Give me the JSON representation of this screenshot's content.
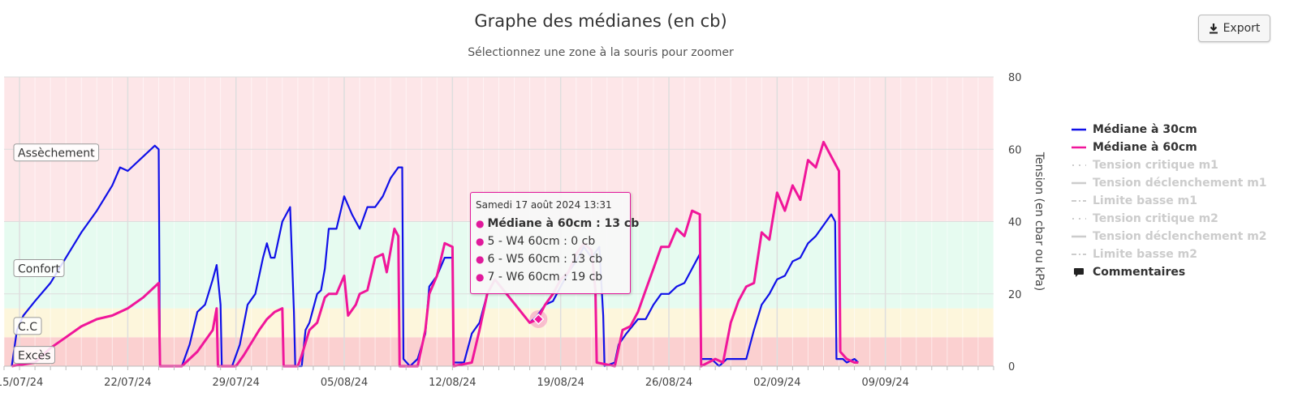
{
  "title": "Graphe des médianes (en cb)",
  "subtitle": "Sélectionnez une zone à la souris pour zoomer",
  "export_label": "Export",
  "tooltip": {
    "date": "Samedi 17 août 2024 13:31",
    "rows": [
      {
        "text": "Médiane à 60cm : 13 cb",
        "bold": true
      },
      {
        "text": "5 - W4 60cm : 0 cb",
        "bold": false
      },
      {
        "text": "6 - W5 60cm : 13 cb",
        "bold": false
      },
      {
        "text": "7 - W6 60cm : 19 cb",
        "bold": false
      }
    ]
  },
  "legend": [
    {
      "label": "Médiane à 30cm",
      "color": "#1010e8",
      "symbol": "line",
      "hidden": false
    },
    {
      "label": "Médiane à 60cm",
      "color": "#f0169a",
      "symbol": "line",
      "hidden": false
    },
    {
      "label": "Tension critique m1",
      "color": "#cccccc",
      "symbol": "dot",
      "hidden": true
    },
    {
      "label": "Tension déclenchement m1",
      "color": "#cccccc",
      "symbol": "line",
      "hidden": true
    },
    {
      "label": "Limite basse m1",
      "color": "#cccccc",
      "symbol": "dashdot",
      "hidden": true
    },
    {
      "label": "Tension critique m2",
      "color": "#cccccc",
      "symbol": "dot",
      "hidden": true
    },
    {
      "label": "Tension déclenchement m2",
      "color": "#cccccc",
      "symbol": "line",
      "hidden": true
    },
    {
      "label": "Limite basse m2",
      "color": "#cccccc",
      "symbol": "dashdot",
      "hidden": true
    },
    {
      "label": "Commentaires",
      "color": "#222222",
      "symbol": "comment",
      "hidden": false
    }
  ],
  "chart_data": {
    "type": "line",
    "title": "Graphe des médianes (en cb)",
    "ylabel": "Tension (en cbar ou kPa)",
    "ylim": [
      0,
      80
    ],
    "yticks": [
      0,
      20,
      40,
      60,
      80
    ],
    "xlim": [
      "2024-07-14",
      "2024-09-16"
    ],
    "xticks": [
      {
        "date": "2024-07-15",
        "label": "15/07/24"
      },
      {
        "date": "2024-07-22",
        "label": "22/07/24"
      },
      {
        "date": "2024-07-29",
        "label": "29/07/24"
      },
      {
        "date": "2024-08-05",
        "label": "05/08/24"
      },
      {
        "date": "2024-08-12",
        "label": "12/08/24"
      },
      {
        "date": "2024-08-19",
        "label": "19/08/24"
      },
      {
        "date": "2024-08-26",
        "label": "26/08/24"
      },
      {
        "date": "2024-09-02",
        "label": "02/09/24"
      },
      {
        "date": "2024-09-09",
        "label": "09/09/24"
      }
    ],
    "bands": [
      {
        "label": "Excès",
        "from": 0,
        "to": 8,
        "color": "#fbd0d0"
      },
      {
        "label": "C.C",
        "from": 8,
        "to": 16,
        "color": "#fdf6dc"
      },
      {
        "label": "Confort",
        "from": 16,
        "to": 40,
        "color": "#e6fbf0"
      },
      {
        "label": "Assèchement",
        "from": 40,
        "to": 80,
        "color": "#fde6e8"
      }
    ],
    "band_label_values": [
      {
        "label": "Assèchement",
        "y": 59
      },
      {
        "label": "Confort",
        "y": 27
      },
      {
        "label": "C.C",
        "y": 11
      },
      {
        "label": "Excès",
        "y": 3
      }
    ],
    "series": [
      {
        "name": "Médiane à 30cm",
        "color": "#1010e8",
        "points": [
          [
            "2024-07-14T12:00",
            0
          ],
          [
            "2024-07-14T20:00",
            10
          ],
          [
            "2024-07-15T06:00",
            14
          ],
          [
            "2024-07-16T00:00",
            18
          ],
          [
            "2024-07-17T00:00",
            23
          ],
          [
            "2024-07-18T00:00",
            30
          ],
          [
            "2024-07-19T00:00",
            37
          ],
          [
            "2024-07-20T00:00",
            43
          ],
          [
            "2024-07-21T00:00",
            50
          ],
          [
            "2024-07-21T12:00",
            55
          ],
          [
            "2024-07-22T00:00",
            54
          ],
          [
            "2024-07-23T00:00",
            58
          ],
          [
            "2024-07-23T18:00",
            61
          ],
          [
            "2024-07-24T00:00",
            60
          ],
          [
            "2024-07-24T02:00",
            0
          ],
          [
            "2024-07-25T12:00",
            0
          ],
          [
            "2024-07-26T00:00",
            6
          ],
          [
            "2024-07-26T12:00",
            15
          ],
          [
            "2024-07-27T00:00",
            17
          ],
          [
            "2024-07-27T12:00",
            24
          ],
          [
            "2024-07-27T18:00",
            28
          ],
          [
            "2024-07-28T00:00",
            17
          ],
          [
            "2024-07-28T02:00",
            0
          ],
          [
            "2024-07-28T18:00",
            0
          ],
          [
            "2024-07-29T06:00",
            6
          ],
          [
            "2024-07-29T18:00",
            17
          ],
          [
            "2024-07-30T06:00",
            20
          ],
          [
            "2024-07-30T18:00",
            30
          ],
          [
            "2024-07-31T00:00",
            34
          ],
          [
            "2024-07-31T06:00",
            30
          ],
          [
            "2024-07-31T12:00",
            30
          ],
          [
            "2024-08-01T00:00",
            40
          ],
          [
            "2024-08-01T12:00",
            44
          ],
          [
            "2024-08-01T18:00",
            15
          ],
          [
            "2024-08-01T20:00",
            0
          ],
          [
            "2024-08-02T06:00",
            0
          ],
          [
            "2024-08-02T12:00",
            10
          ],
          [
            "2024-08-02T18:00",
            12
          ],
          [
            "2024-08-03T06:00",
            20
          ],
          [
            "2024-08-03T12:00",
            21
          ],
          [
            "2024-08-03T18:00",
            27
          ],
          [
            "2024-08-04T00:00",
            38
          ],
          [
            "2024-08-04T12:00",
            38
          ],
          [
            "2024-08-05T00:00",
            47
          ],
          [
            "2024-08-05T12:00",
            42
          ],
          [
            "2024-08-06T00:00",
            38
          ],
          [
            "2024-08-06T12:00",
            44
          ],
          [
            "2024-08-07T00:00",
            44
          ],
          [
            "2024-08-07T12:00",
            47
          ],
          [
            "2024-08-08T00:00",
            52
          ],
          [
            "2024-08-08T12:00",
            55
          ],
          [
            "2024-08-08T18:00",
            55
          ],
          [
            "2024-08-08T20:00",
            2
          ],
          [
            "2024-08-09T06:00",
            0
          ],
          [
            "2024-08-09T18:00",
            2
          ],
          [
            "2024-08-10T06:00",
            9
          ],
          [
            "2024-08-10T12:00",
            22
          ],
          [
            "2024-08-11T00:00",
            25
          ],
          [
            "2024-08-11T12:00",
            30
          ],
          [
            "2024-08-12T00:00",
            30
          ],
          [
            "2024-08-12T02:00",
            1
          ],
          [
            "2024-08-12T18:00",
            1
          ],
          [
            "2024-08-13T06:00",
            9
          ],
          [
            "2024-08-13T18:00",
            12
          ],
          [
            "2024-08-14T06:00",
            20
          ],
          [
            "2024-08-14T18:00",
            24
          ],
          [
            "2024-08-17T00:00",
            12
          ],
          [
            "2024-08-17T12:00",
            14
          ],
          [
            "2024-08-18T00:00",
            17
          ],
          [
            "2024-08-18T12:00",
            18
          ],
          [
            "2024-08-19T00:00",
            22
          ],
          [
            "2024-08-19T12:00",
            26
          ],
          [
            "2024-08-20T00:00",
            29
          ],
          [
            "2024-08-20T12:00",
            33
          ],
          [
            "2024-08-21T00:00",
            30
          ],
          [
            "2024-08-21T12:00",
            33
          ],
          [
            "2024-08-21T18:00",
            14
          ],
          [
            "2024-08-21T20:00",
            0
          ],
          [
            "2024-08-22T12:00",
            1
          ],
          [
            "2024-08-22T18:00",
            6
          ],
          [
            "2024-08-23T06:00",
            9
          ],
          [
            "2024-08-24T00:00",
            13
          ],
          [
            "2024-08-24T12:00",
            13
          ],
          [
            "2024-08-25T00:00",
            17
          ],
          [
            "2024-08-25T12:00",
            20
          ],
          [
            "2024-08-26T00:00",
            20
          ],
          [
            "2024-08-26T12:00",
            22
          ],
          [
            "2024-08-27T00:00",
            23
          ],
          [
            "2024-08-27T12:00",
            27
          ],
          [
            "2024-08-28T00:00",
            31
          ],
          [
            "2024-08-28T02:00",
            2
          ],
          [
            "2024-08-28T18:00",
            2
          ],
          [
            "2024-08-29T06:00",
            0
          ],
          [
            "2024-08-29T18:00",
            2
          ],
          [
            "2024-08-31T00:00",
            2
          ],
          [
            "2024-08-31T12:00",
            10
          ],
          [
            "2024-09-01T00:00",
            17
          ],
          [
            "2024-09-01T12:00",
            20
          ],
          [
            "2024-09-02T00:00",
            24
          ],
          [
            "2024-09-02T12:00",
            25
          ],
          [
            "2024-09-03T00:00",
            29
          ],
          [
            "2024-09-03T12:00",
            30
          ],
          [
            "2024-09-04T00:00",
            34
          ],
          [
            "2024-09-04T12:00",
            36
          ],
          [
            "2024-09-05T00:00",
            39
          ],
          [
            "2024-09-05T12:00",
            42
          ],
          [
            "2024-09-05T18:00",
            40
          ],
          [
            "2024-09-05T20:00",
            2
          ],
          [
            "2024-09-06T06:00",
            2
          ],
          [
            "2024-09-06T12:00",
            1
          ],
          [
            "2024-09-07T00:00",
            2
          ],
          [
            "2024-09-07T06:00",
            1
          ]
        ]
      },
      {
        "name": "Médiane à 60cm",
        "color": "#f0169a",
        "points": [
          [
            "2024-07-14T12:00",
            0
          ],
          [
            "2024-07-16T00:00",
            1
          ],
          [
            "2024-07-17T00:00",
            5
          ],
          [
            "2024-07-18T00:00",
            8
          ],
          [
            "2024-07-19T00:00",
            11
          ],
          [
            "2024-07-20T00:00",
            13
          ],
          [
            "2024-07-21T00:00",
            14
          ],
          [
            "2024-07-22T00:00",
            16
          ],
          [
            "2024-07-23T00:00",
            19
          ],
          [
            "2024-07-24T00:00",
            23
          ],
          [
            "2024-07-24T02:00",
            0
          ],
          [
            "2024-07-25T12:00",
            0
          ],
          [
            "2024-07-26T12:00",
            4
          ],
          [
            "2024-07-27T12:00",
            10
          ],
          [
            "2024-07-27T18:00",
            16
          ],
          [
            "2024-07-27T20:00",
            0
          ],
          [
            "2024-07-29T00:00",
            0
          ],
          [
            "2024-07-29T12:00",
            3
          ],
          [
            "2024-07-30T12:00",
            10
          ],
          [
            "2024-07-31T00:00",
            13
          ],
          [
            "2024-07-31T12:00",
            15
          ],
          [
            "2024-08-01T00:00",
            16
          ],
          [
            "2024-08-01T02:00",
            0
          ],
          [
            "2024-08-02T00:00",
            0
          ],
          [
            "2024-08-02T06:00",
            3
          ],
          [
            "2024-08-02T18:00",
            10
          ],
          [
            "2024-08-03T06:00",
            12
          ],
          [
            "2024-08-03T18:00",
            19
          ],
          [
            "2024-08-04T00:00",
            20
          ],
          [
            "2024-08-04T12:00",
            20
          ],
          [
            "2024-08-05T00:00",
            25
          ],
          [
            "2024-08-05T06:00",
            14
          ],
          [
            "2024-08-05T18:00",
            17
          ],
          [
            "2024-08-06T00:00",
            20
          ],
          [
            "2024-08-06T12:00",
            21
          ],
          [
            "2024-08-07T00:00",
            30
          ],
          [
            "2024-08-07T12:00",
            31
          ],
          [
            "2024-08-07T18:00",
            26
          ],
          [
            "2024-08-08T06:00",
            38
          ],
          [
            "2024-08-08T12:00",
            36
          ],
          [
            "2024-08-08T14:00",
            0
          ],
          [
            "2024-08-09T18:00",
            0
          ],
          [
            "2024-08-10T06:00",
            10
          ],
          [
            "2024-08-10T12:00",
            20
          ],
          [
            "2024-08-11T00:00",
            25
          ],
          [
            "2024-08-11T12:00",
            34
          ],
          [
            "2024-08-12T00:00",
            33
          ],
          [
            "2024-08-12T02:00",
            0
          ],
          [
            "2024-08-13T06:00",
            1
          ],
          [
            "2024-08-13T18:00",
            10
          ],
          [
            "2024-08-14T06:00",
            20
          ],
          [
            "2024-08-14T18:00",
            24
          ],
          [
            "2024-08-17T00:00",
            12
          ],
          [
            "2024-08-17T12:00",
            13
          ],
          [
            "2024-08-18T00:00",
            17
          ],
          [
            "2024-08-18T12:00",
            20
          ],
          [
            "2024-08-19T00:00",
            24
          ],
          [
            "2024-08-19T12:00",
            26
          ],
          [
            "2024-08-20T00:00",
            31
          ],
          [
            "2024-08-20T12:00",
            34
          ],
          [
            "2024-08-21T00:00",
            32
          ],
          [
            "2024-08-21T06:00",
            21
          ],
          [
            "2024-08-21T08:00",
            1
          ],
          [
            "2024-08-22T12:00",
            0
          ],
          [
            "2024-08-23T00:00",
            10
          ],
          [
            "2024-08-23T12:00",
            11
          ],
          [
            "2024-08-24T00:00",
            15
          ],
          [
            "2024-08-24T12:00",
            21
          ],
          [
            "2024-08-25T00:00",
            27
          ],
          [
            "2024-08-25T12:00",
            33
          ],
          [
            "2024-08-26T00:00",
            33
          ],
          [
            "2024-08-26T12:00",
            38
          ],
          [
            "2024-08-27T00:00",
            36
          ],
          [
            "2024-08-27T12:00",
            43
          ],
          [
            "2024-08-28T00:00",
            42
          ],
          [
            "2024-08-28T02:00",
            0
          ],
          [
            "2024-08-29T00:00",
            2
          ],
          [
            "2024-08-29T12:00",
            1
          ],
          [
            "2024-08-30T00:00",
            12
          ],
          [
            "2024-08-30T12:00",
            18
          ],
          [
            "2024-08-31T00:00",
            22
          ],
          [
            "2024-08-31T12:00",
            23
          ],
          [
            "2024-09-01T00:00",
            37
          ],
          [
            "2024-09-01T12:00",
            35
          ],
          [
            "2024-09-02T00:00",
            48
          ],
          [
            "2024-09-02T12:00",
            43
          ],
          [
            "2024-09-03T00:00",
            50
          ],
          [
            "2024-09-03T12:00",
            46
          ],
          [
            "2024-09-04T00:00",
            57
          ],
          [
            "2024-09-04T12:00",
            55
          ],
          [
            "2024-09-05T00:00",
            62
          ],
          [
            "2024-09-05T12:00",
            58
          ],
          [
            "2024-09-06T00:00",
            54
          ],
          [
            "2024-09-06T02:00",
            4
          ],
          [
            "2024-09-06T12:00",
            2
          ],
          [
            "2024-09-07T00:00",
            1
          ],
          [
            "2024-09-07T06:00",
            1
          ]
        ]
      }
    ],
    "highlight_point": {
      "x": "2024-08-17T13:31",
      "y": 13,
      "series": "Médiane à 60cm"
    }
  }
}
